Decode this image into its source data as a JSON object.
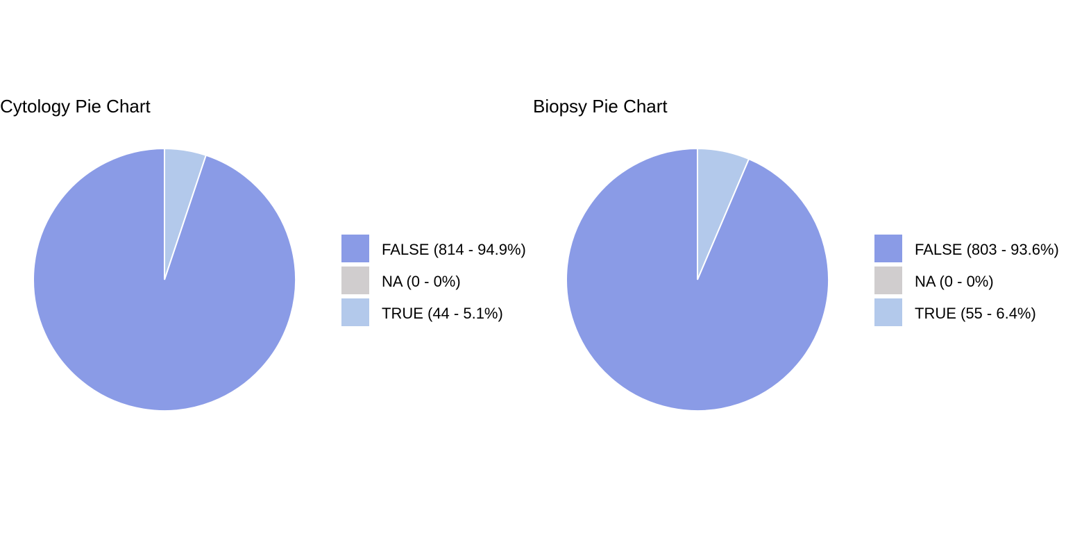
{
  "chart_data": [
    {
      "type": "pie",
      "title": "Cytology Pie Chart",
      "categories": [
        "FALSE",
        "NA",
        "TRUE"
      ],
      "values": [
        814,
        0,
        44
      ],
      "percentages": [
        94.9,
        0,
        5.1
      ],
      "legend_labels": [
        "FALSE (814 - 94.9%)",
        "NA (0 - 0%)",
        "TRUE (44 - 5.1%)"
      ],
      "colors": [
        "#8a9be6",
        "#d0cdce",
        "#b3c9eb"
      ],
      "legend_position": "right"
    },
    {
      "type": "pie",
      "title": "Biopsy Pie Chart",
      "categories": [
        "FALSE",
        "NA",
        "TRUE"
      ],
      "values": [
        803,
        0,
        55
      ],
      "percentages": [
        93.6,
        0,
        6.4
      ],
      "legend_labels": [
        "FALSE (803 - 93.6%)",
        "NA (0 - 0%)",
        "TRUE (55 - 6.4%)"
      ],
      "colors": [
        "#8a9be6",
        "#d0cdce",
        "#b3c9eb"
      ],
      "legend_position": "right"
    }
  ]
}
